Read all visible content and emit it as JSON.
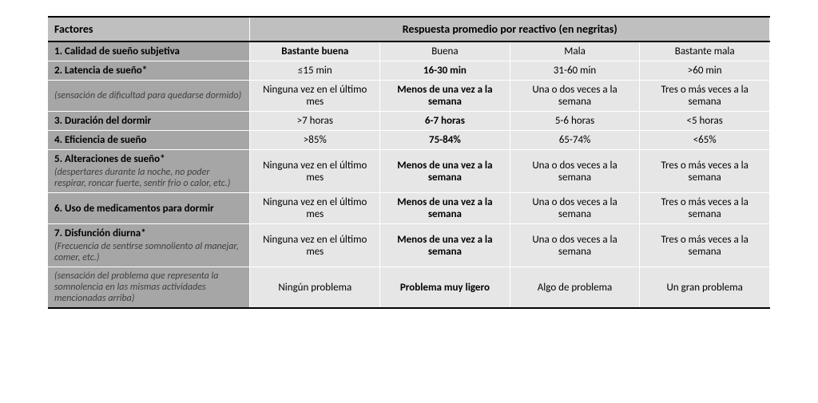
{
  "table": {
    "type": "table",
    "colors": {
      "header_bg": "#bfbfbf",
      "factor_bg": "#a6a6a6",
      "response_bg": "#e6e6e6",
      "border": "#ffffff",
      "rule": "#000000",
      "text": "#000000",
      "note_text": "#3f3f3f"
    },
    "headers": {
      "factores": "Factores",
      "respuesta": "Respuesta promedio por reactivo (en negritas)"
    },
    "rows": [
      {
        "factor": "1. Calidad de sueño subjetiva",
        "responses": [
          "Bastante buena",
          "Buena",
          "Mala",
          "Bastante mala"
        ],
        "bold_index": 0
      },
      {
        "factor": "2. Latencia de sueño*",
        "responses": [
          "≤15 min",
          "16-30 min",
          "31-60 min",
          ">60 min"
        ],
        "bold_index": 1
      },
      {
        "note": "(sensación de dificultad para quedarse dormido)",
        "responses": [
          "Ninguna vez en el último mes",
          "Menos de una vez a la semana",
          "Una o dos veces a la semana",
          "Tres o más veces a la semana"
        ],
        "bold_index": 1
      },
      {
        "factor": "3. Duración del dormir",
        "responses": [
          ">7 horas",
          "6-7 horas",
          "5-6 horas",
          "<5 horas"
        ],
        "bold_index": 1
      },
      {
        "factor": "4. Eficiencia de sueño",
        "responses": [
          ">85%",
          "75-84%",
          "65-74%",
          "<65%"
        ],
        "bold_index": 1
      },
      {
        "factor": "5. Alteraciones de sueño*",
        "note": "(despertares durante la noche, no poder respirar, roncar fuerte, sentir frio o calor, etc.)",
        "responses": [
          "Ninguna vez en el último mes",
          "Menos de una vez a la semana",
          "Una o dos veces a la semana",
          "Tres o más veces a la semana"
        ],
        "bold_index": 1,
        "combined": true
      },
      {
        "factor": "6. Uso de medicamentos para dormir",
        "responses": [
          "Ninguna vez en el último mes",
          "Menos de una vez a la semana",
          "Una o dos veces a la semana",
          "Tres o más veces a la semana"
        ],
        "bold_index": 1
      },
      {
        "factor": "7. Disfunción diurna*",
        "note": "(Frecuencia de sentirse somnoliento al manejar, comer, etc.)",
        "responses": [
          "Ninguna vez en el último mes",
          "Menos de una vez a la semana",
          "Una o dos veces a la semana",
          "Tres o más veces a la semana"
        ],
        "bold_index": 1,
        "combined": true
      },
      {
        "note": "(sensación del problema que representa la somnolencia en las mismas actividades mencionadas arriba)",
        "responses": [
          "Ningún problema",
          "Problema muy ligero",
          "Algo de problema",
          "Un gran problema"
        ],
        "bold_index": 1,
        "last": true
      }
    ]
  }
}
